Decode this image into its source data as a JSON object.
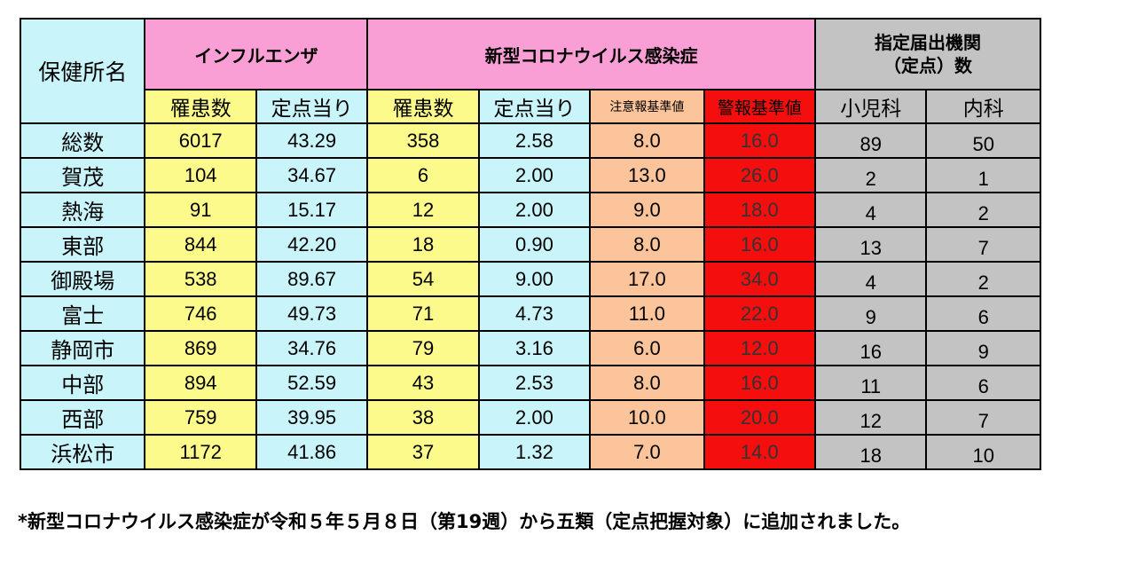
{
  "headers": {
    "office": "保健所名",
    "influenza": "インフルエンザ",
    "covid": "新型コロナウイルス感染症",
    "institutions_line1": "指定届出機関",
    "institutions_line2": "（定点）数",
    "inf_cases": "罹患数",
    "inf_per_point": "定点当り",
    "cov_cases": "罹患数",
    "cov_per_point": "定点当り",
    "caution": "注意報基準値",
    "alert": "警報基準値",
    "pediatrics": "小児科",
    "internal": "内科"
  },
  "rows": [
    {
      "name": "総数",
      "inf_cases": "6017",
      "inf_per": "43.29",
      "cov_cases": "358",
      "cov_per": "2.58",
      "caution": "8.0",
      "alert": "16.0",
      "ped": "89",
      "int": "50"
    },
    {
      "name": "賀茂",
      "inf_cases": "104",
      "inf_per": "34.67",
      "cov_cases": "6",
      "cov_per": "2.00",
      "caution": "13.0",
      "alert": "26.0",
      "ped": "2",
      "int": "1"
    },
    {
      "name": "熱海",
      "inf_cases": "91",
      "inf_per": "15.17",
      "cov_cases": "12",
      "cov_per": "2.00",
      "caution": "9.0",
      "alert": "18.0",
      "ped": "4",
      "int": "2"
    },
    {
      "name": "東部",
      "inf_cases": "844",
      "inf_per": "42.20",
      "cov_cases": "18",
      "cov_per": "0.90",
      "caution": "8.0",
      "alert": "16.0",
      "ped": "13",
      "int": "7"
    },
    {
      "name": "御殿場",
      "inf_cases": "538",
      "inf_per": "89.67",
      "cov_cases": "54",
      "cov_per": "9.00",
      "caution": "17.0",
      "alert": "34.0",
      "ped": "4",
      "int": "2"
    },
    {
      "name": "富士",
      "inf_cases": "746",
      "inf_per": "49.73",
      "cov_cases": "71",
      "cov_per": "4.73",
      "caution": "11.0",
      "alert": "22.0",
      "ped": "9",
      "int": "6"
    },
    {
      "name": "静岡市",
      "inf_cases": "869",
      "inf_per": "34.76",
      "cov_cases": "79",
      "cov_per": "3.16",
      "caution": "6.0",
      "alert": "12.0",
      "ped": "16",
      "int": "9"
    },
    {
      "name": "中部",
      "inf_cases": "894",
      "inf_per": "52.59",
      "cov_cases": "43",
      "cov_per": "2.53",
      "caution": "8.0",
      "alert": "16.0",
      "ped": "11",
      "int": "6"
    },
    {
      "name": "西部",
      "inf_cases": "759",
      "inf_per": "39.95",
      "cov_cases": "38",
      "cov_per": "2.00",
      "caution": "10.0",
      "alert": "20.0",
      "ped": "12",
      "int": "7"
    },
    {
      "name": "浜松市",
      "inf_cases": "1172",
      "inf_per": "41.86",
      "cov_cases": "37",
      "cov_per": "1.32",
      "caution": "7.0",
      "alert": "14.0",
      "ped": "18",
      "int": "10"
    }
  ],
  "footnote": "*新型コロナウイルス感染症が令和５年５月８日（第19週）から五類（定点把握対象）に追加されました。",
  "colors": {
    "name_bg": "#c8f4fa",
    "yellow": "#fdfa8c",
    "pink": "#f99fd6",
    "orange": "#fcc49a",
    "red": "#f40e0e",
    "gray": "#c3c3c3"
  }
}
